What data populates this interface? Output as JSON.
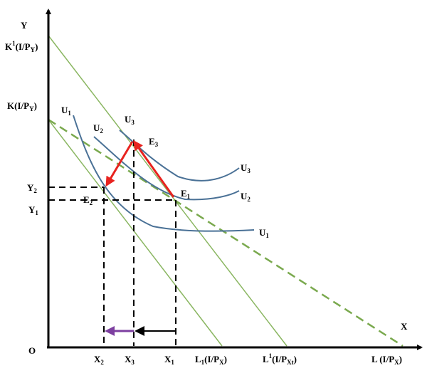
{
  "axes": {
    "y_label": "Y",
    "x_label": "X",
    "origin_label": "O"
  },
  "y_axis_labels": {
    "k1": {
      "main": "K",
      "sup": "1",
      "paren_open": "(I/P",
      "sub": "Y",
      "paren_close": ")"
    },
    "k": {
      "main": "K(I/P",
      "sub": "Y",
      "paren_close": ")"
    },
    "y2": {
      "main": "Y",
      "sub": "2"
    },
    "y1": {
      "main": "Y",
      "sub": "1"
    }
  },
  "x_axis_labels": {
    "x2": {
      "main": "X",
      "sub": "2"
    },
    "x3": {
      "main": "X",
      "sub": "3"
    },
    "x1": {
      "main": "X",
      "sub": "1"
    },
    "l1": {
      "main": "L",
      "sub": "1",
      "paren_open": "(I/P",
      "sub2": "X",
      "paren_close": ")"
    },
    "lprime": {
      "main": "L",
      "sup": "1",
      "paren_open": "(I/P",
      "sub2": "Xt",
      "paren_close": ")"
    },
    "l": {
      "main": "L (I/P",
      "sub": "X",
      "paren_close": ")"
    }
  },
  "curve_labels": {
    "u1_left": {
      "main": "U",
      "sub": "1"
    },
    "u2_left": {
      "main": "U",
      "sub": "2"
    },
    "u3_left": {
      "main": "U",
      "sub": "3"
    },
    "u3_right": {
      "main": "U",
      "sub": "3"
    },
    "u2_right": {
      "main": "U",
      "sub": "2"
    },
    "u1_right": {
      "main": "U",
      "sub": "1"
    }
  },
  "points": {
    "e1": {
      "main": "E",
      "sub": "1"
    },
    "e2": {
      "main": "E",
      "sub": "2"
    },
    "e3": {
      "main": "E",
      "sub": "3"
    }
  },
  "colors": {
    "axis": "#000000",
    "budget_line": "#8ab661",
    "dashed_budget": "#7aa94e",
    "indifference": "#4a7196",
    "red_arrow": "#e8231f",
    "purple_arrow": "#7d3fa0",
    "guide": "#000000"
  }
}
